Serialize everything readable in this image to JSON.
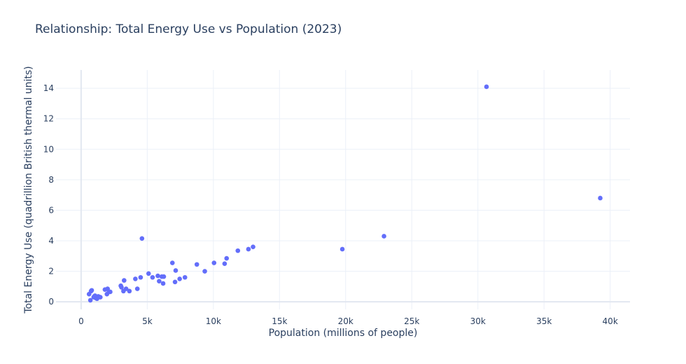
{
  "chart_data": {
    "type": "scatter",
    "title": "Relationship: Total Energy Use vs Population (2023)",
    "xlabel": "Population (millions of people)",
    "ylabel": "Total Energy Use (quadrillion British thermal units)",
    "xlim": [
      -1900,
      41500
    ],
    "ylim": [
      -0.5,
      15.2
    ],
    "xticks": [
      0,
      5000,
      10000,
      15000,
      20000,
      25000,
      30000,
      35000,
      40000
    ],
    "xtick_labels": [
      "0",
      "5k",
      "10k",
      "15k",
      "20k",
      "25k",
      "30k",
      "35k",
      "40k"
    ],
    "yticks": [
      0,
      2,
      4,
      6,
      8,
      10,
      12,
      14
    ],
    "ytick_labels": [
      "0",
      "2",
      "4",
      "6",
      "8",
      "10",
      "12",
      "14"
    ],
    "grid": true,
    "legend": "none",
    "marker_color": "#636efa",
    "series": [
      {
        "x": [
          600,
          700,
          750,
          800,
          950,
          1000,
          1050,
          1100,
          1200,
          1300,
          1450,
          1800,
          1950,
          2000,
          2100,
          2200,
          3000,
          3050,
          3200,
          3250,
          3400,
          3650,
          4100,
          4250,
          4500,
          4600,
          5100,
          5400,
          5800,
          5900,
          6100,
          6200,
          6250,
          6900,
          7100,
          7150,
          7450,
          7850,
          8750,
          9350,
          10050,
          10850,
          11000,
          11850,
          12650,
          13000,
          19750,
          22900,
          30650,
          39250
        ],
        "y": [
          0.5,
          0.1,
          0.7,
          0.75,
          0.3,
          0.35,
          0.4,
          0.25,
          0.2,
          0.35,
          0.3,
          0.8,
          0.5,
          0.85,
          0.65,
          0.65,
          1.05,
          0.95,
          0.7,
          1.4,
          0.85,
          0.7,
          1.5,
          0.85,
          1.6,
          4.15,
          1.85,
          1.6,
          1.7,
          1.35,
          1.65,
          1.2,
          1.65,
          2.55,
          1.3,
          2.05,
          1.5,
          1.6,
          2.45,
          2.0,
          2.55,
          2.5,
          2.85,
          3.35,
          3.45,
          3.6,
          3.45,
          4.3,
          14.1,
          6.8
        ]
      }
    ]
  }
}
